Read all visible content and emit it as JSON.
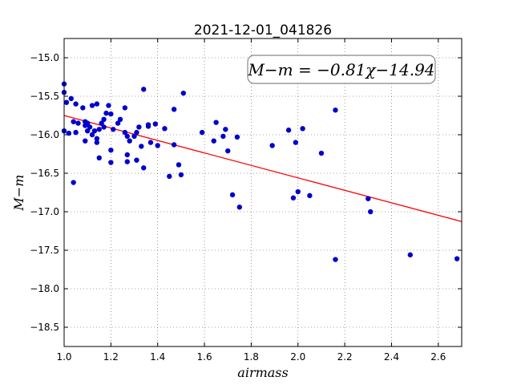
{
  "chart_data": {
    "type": "scatter",
    "title": "2021-12-01_041826",
    "xlabel": "airmass",
    "ylabel": "M−m",
    "xlim": [
      1.0,
      2.7
    ],
    "ylim": [
      -18.75,
      -14.75
    ],
    "y_inverted": true,
    "grid": true,
    "xticks": [
      "1.0",
      "1.2",
      "1.4",
      "1.6",
      "1.8",
      "2.0",
      "2.2",
      "2.4",
      "2.6"
    ],
    "yticks": [
      "−15.0",
      "−15.5",
      "−16.0",
      "−16.5",
      "−17.0",
      "−17.5",
      "−18.0",
      "−18.5"
    ],
    "annotation": "M−m = −0.81χ−14.94",
    "fit": {
      "slope": -0.81,
      "intercept": -14.94,
      "color": "#ff0000"
    },
    "point_color": "#0000cc",
    "points": [
      [
        1.0,
        -15.34
      ],
      [
        1.0,
        -15.45
      ],
      [
        1.01,
        -15.58
      ],
      [
        1.0,
        -15.95
      ],
      [
        1.02,
        -15.98
      ],
      [
        1.03,
        -15.53
      ],
      [
        1.04,
        -15.83
      ],
      [
        1.05,
        -15.6
      ],
      [
        1.05,
        -15.97
      ],
      [
        1.04,
        -16.62
      ],
      [
        1.06,
        -15.85
      ],
      [
        1.08,
        -15.65
      ],
      [
        1.09,
        -15.83
      ],
      [
        1.09,
        -15.88
      ],
      [
        1.1,
        -15.85
      ],
      [
        1.1,
        -15.95
      ],
      [
        1.09,
        -16.08
      ],
      [
        1.11,
        -15.9
      ],
      [
        1.12,
        -16.0
      ],
      [
        1.12,
        -15.62
      ],
      [
        1.13,
        -15.95
      ],
      [
        1.14,
        -15.6
      ],
      [
        1.14,
        -16.05
      ],
      [
        1.14,
        -16.1
      ],
      [
        1.15,
        -15.93
      ],
      [
        1.16,
        -15.85
      ],
      [
        1.17,
        -15.9
      ],
      [
        1.17,
        -15.8
      ],
      [
        1.15,
        -16.3
      ],
      [
        1.18,
        -15.72
      ],
      [
        1.19,
        -15.62
      ],
      [
        1.2,
        -15.73
      ],
      [
        1.21,
        -15.93
      ],
      [
        1.2,
        -16.2
      ],
      [
        1.2,
        -16.36
      ],
      [
        1.23,
        -15.85
      ],
      [
        1.24,
        -15.8
      ],
      [
        1.26,
        -15.65
      ],
      [
        1.26,
        -15.97
      ],
      [
        1.27,
        -16.02
      ],
      [
        1.27,
        -16.26
      ],
      [
        1.27,
        -16.35
      ],
      [
        1.28,
        -16.08
      ],
      [
        1.3,
        -16.02
      ],
      [
        1.31,
        -15.97
      ],
      [
        1.31,
        -16.33
      ],
      [
        1.32,
        -15.9
      ],
      [
        1.33,
        -16.15
      ],
      [
        1.34,
        -15.41
      ],
      [
        1.34,
        -16.43
      ],
      [
        1.36,
        -15.87
      ],
      [
        1.36,
        -15.89
      ],
      [
        1.37,
        -16.1
      ],
      [
        1.39,
        -15.86
      ],
      [
        1.4,
        -16.14
      ],
      [
        1.43,
        -15.92
      ],
      [
        1.45,
        -16.54
      ],
      [
        1.47,
        -15.67
      ],
      [
        1.47,
        -16.13
      ],
      [
        1.49,
        -16.39
      ],
      [
        1.5,
        -16.52
      ],
      [
        1.51,
        -15.46
      ],
      [
        1.59,
        -15.97
      ],
      [
        1.64,
        -16.08
      ],
      [
        1.65,
        -15.84
      ],
      [
        1.68,
        -16.02
      ],
      [
        1.69,
        -15.93
      ],
      [
        1.7,
        -16.21
      ],
      [
        1.72,
        -16.78
      ],
      [
        1.74,
        -16.03
      ],
      [
        1.75,
        -16.94
      ],
      [
        1.89,
        -16.14
      ],
      [
        1.96,
        -15.94
      ],
      [
        1.98,
        -16.82
      ],
      [
        1.99,
        -16.1
      ],
      [
        2.0,
        -16.74
      ],
      [
        2.02,
        -15.92
      ],
      [
        2.05,
        -16.79
      ],
      [
        2.1,
        -16.24
      ],
      [
        2.16,
        -15.68
      ],
      [
        2.16,
        -17.62
      ],
      [
        2.3,
        -16.83
      ],
      [
        2.31,
        -17.0
      ],
      [
        2.48,
        -17.56
      ],
      [
        2.68,
        -17.61
      ]
    ]
  }
}
